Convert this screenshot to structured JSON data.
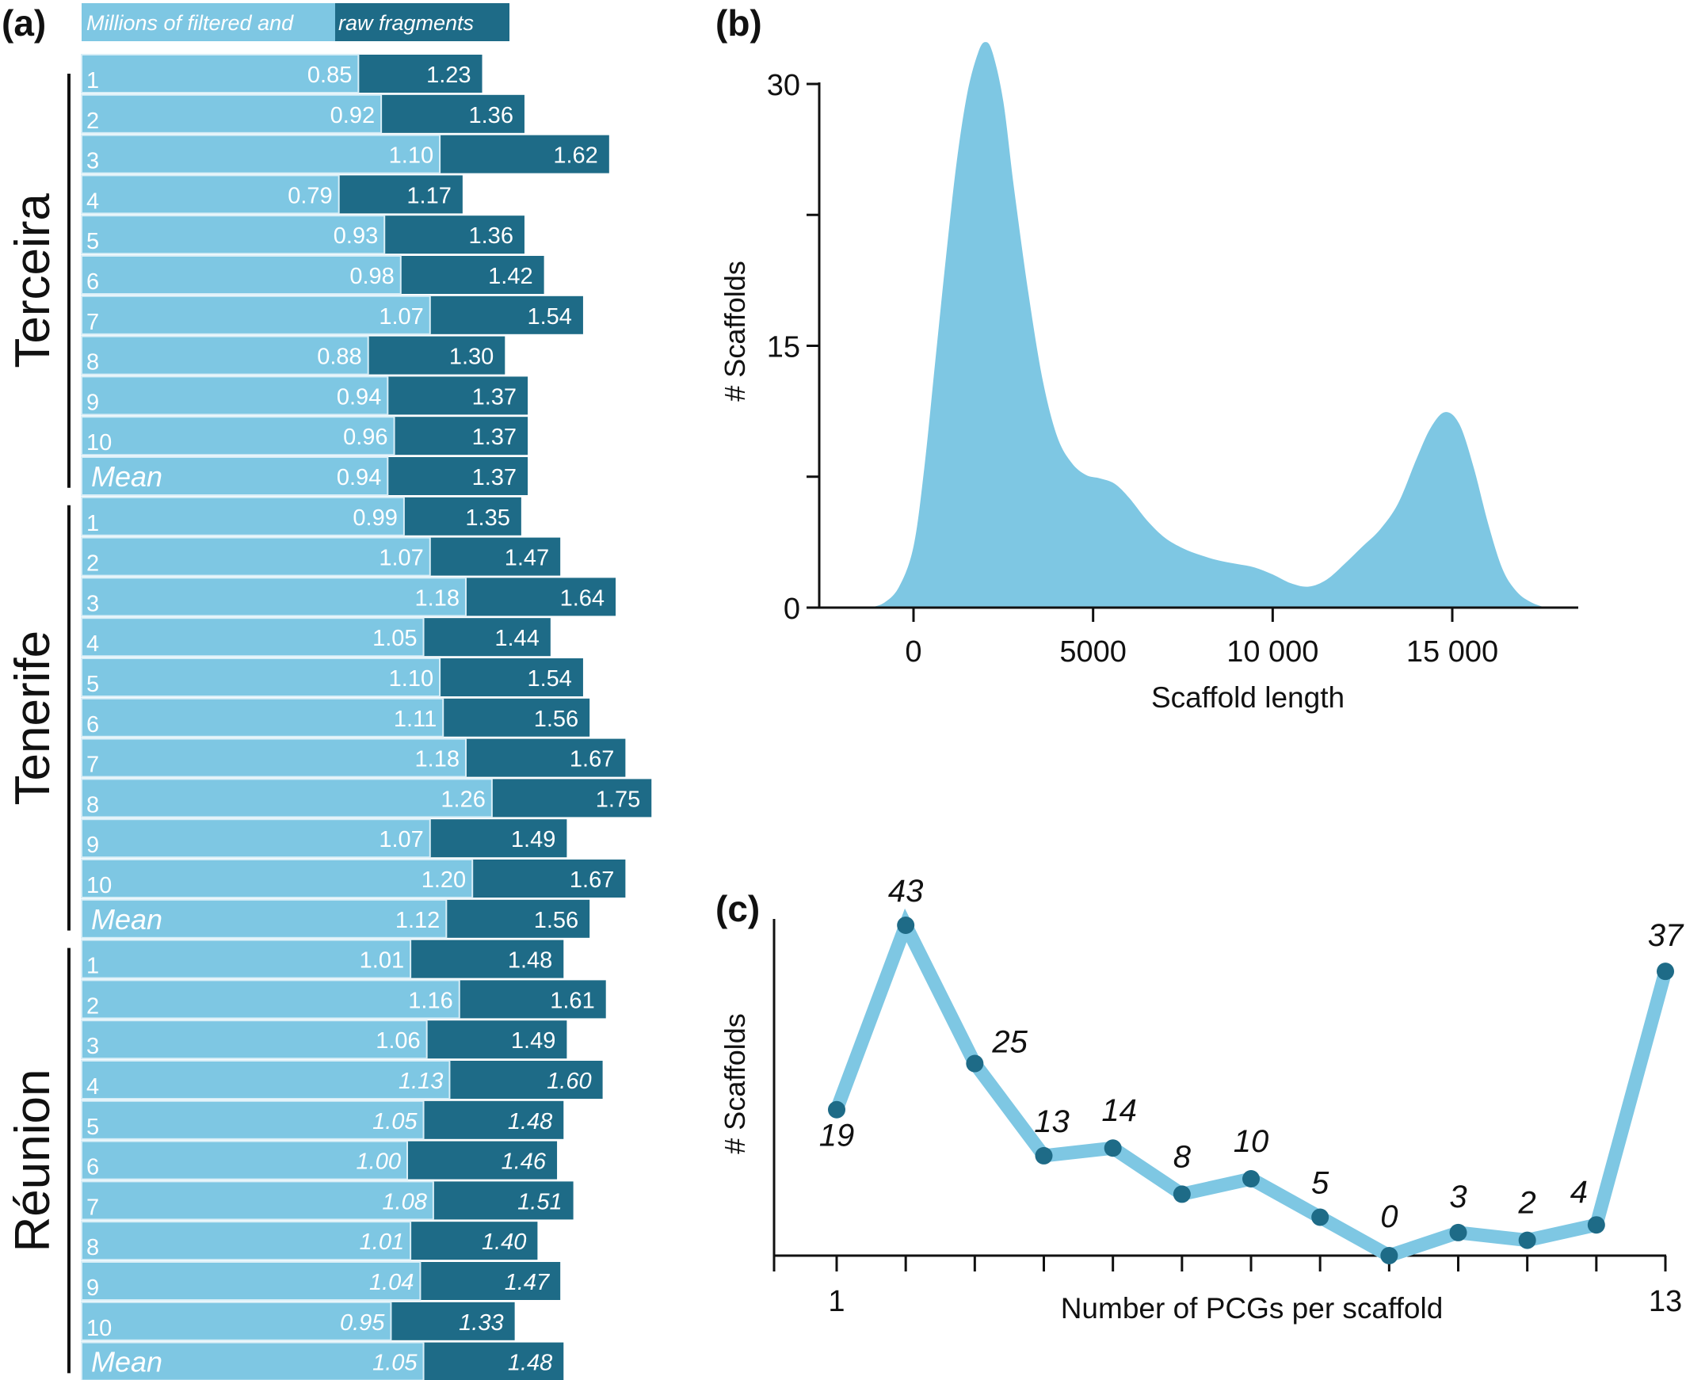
{
  "colors": {
    "filtered": "#7ec7e3",
    "raw": "#1e6b87",
    "density_fill": "#7ec7e3",
    "line": "#7ec7e3",
    "marker": "#1e6b87",
    "axis": "#111111",
    "bar_text": "#ffffff"
  },
  "panels": {
    "a": "(a)",
    "b": "(b)",
    "c": "(c)"
  },
  "chart_data": [
    {
      "id": "a",
      "type": "bar",
      "orientation": "horizontal",
      "stacked_overlay": true,
      "title": "",
      "legend": {
        "placement": "top",
        "entries": [
          "Millions of filtered and",
          "raw fragments"
        ]
      },
      "series_names": [
        "filtered",
        "raw"
      ],
      "units": "millions of fragments",
      "groups": [
        {
          "name": "Terceira",
          "rows": [
            {
              "label": "1",
              "filtered": 0.85,
              "raw": 1.23,
              "italic": false
            },
            {
              "label": "2",
              "filtered": 0.92,
              "raw": 1.36,
              "italic": false
            },
            {
              "label": "3",
              "filtered": 1.1,
              "raw": 1.62,
              "italic": false
            },
            {
              "label": "4",
              "filtered": 0.79,
              "raw": 1.17,
              "italic": false
            },
            {
              "label": "5",
              "filtered": 0.93,
              "raw": 1.36,
              "italic": false
            },
            {
              "label": "6",
              "filtered": 0.98,
              "raw": 1.42,
              "italic": false
            },
            {
              "label": "7",
              "filtered": 1.07,
              "raw": 1.54,
              "italic": false
            },
            {
              "label": "8",
              "filtered": 0.88,
              "raw": 1.3,
              "italic": false
            },
            {
              "label": "9",
              "filtered": 0.94,
              "raw": 1.37,
              "italic": false
            },
            {
              "label": "10",
              "filtered": 0.96,
              "raw": 1.37,
              "italic": false
            },
            {
              "label": "Mean",
              "filtered": 0.94,
              "raw": 1.37,
              "italic": false,
              "mean": true
            }
          ]
        },
        {
          "name": "Tenerife",
          "rows": [
            {
              "label": "1",
              "filtered": 0.99,
              "raw": 1.35,
              "italic": false
            },
            {
              "label": "2",
              "filtered": 1.07,
              "raw": 1.47,
              "italic": false
            },
            {
              "label": "3",
              "filtered": 1.18,
              "raw": 1.64,
              "italic": false
            },
            {
              "label": "4",
              "filtered": 1.05,
              "raw": 1.44,
              "italic": false
            },
            {
              "label": "5",
              "filtered": 1.1,
              "raw": 1.54,
              "italic": false
            },
            {
              "label": "6",
              "filtered": 1.11,
              "raw": 1.56,
              "italic": false
            },
            {
              "label": "7",
              "filtered": 1.18,
              "raw": 1.67,
              "italic": false
            },
            {
              "label": "8",
              "filtered": 1.26,
              "raw": 1.75,
              "italic": false
            },
            {
              "label": "9",
              "filtered": 1.07,
              "raw": 1.49,
              "italic": false
            },
            {
              "label": "10",
              "filtered": 1.2,
              "raw": 1.67,
              "italic": false
            },
            {
              "label": "Mean",
              "filtered": 1.12,
              "raw": 1.56,
              "italic": false,
              "mean": true
            }
          ]
        },
        {
          "name": "Réunion",
          "rows": [
            {
              "label": "1",
              "filtered": 1.01,
              "raw": 1.48,
              "italic": false
            },
            {
              "label": "2",
              "filtered": 1.16,
              "raw": 1.61,
              "italic": false
            },
            {
              "label": "3",
              "filtered": 1.06,
              "raw": 1.49,
              "italic": false
            },
            {
              "label": "4",
              "filtered": 1.13,
              "raw": 1.6,
              "italic": true
            },
            {
              "label": "5",
              "filtered": 1.05,
              "raw": 1.48,
              "italic": true
            },
            {
              "label": "6",
              "filtered": 1.0,
              "raw": 1.46,
              "italic": true
            },
            {
              "label": "7",
              "filtered": 1.08,
              "raw": 1.51,
              "italic": true
            },
            {
              "label": "8",
              "filtered": 1.01,
              "raw": 1.4,
              "italic": true
            },
            {
              "label": "9",
              "filtered": 1.04,
              "raw": 1.47,
              "italic": true
            },
            {
              "label": "10",
              "filtered": 0.95,
              "raw": 1.33,
              "italic": true
            },
            {
              "label": "Mean",
              "filtered": 1.05,
              "raw": 1.48,
              "italic": true,
              "mean": true
            }
          ]
        }
      ]
    },
    {
      "id": "b",
      "type": "area",
      "title": "",
      "xlabel": "Scaffold length",
      "ylabel": "# Scaffolds",
      "xlim": [
        -2300,
        18500
      ],
      "ylim": [
        0,
        30
      ],
      "xticks": [
        0,
        5000,
        10000,
        15000
      ],
      "xtick_labels": [
        "0",
        "5000",
        "10 000",
        "15 000"
      ],
      "yticks": [
        0,
        7.5,
        15,
        22.5,
        30
      ],
      "ytick_labels": [
        "0",
        "",
        "15",
        "",
        "30"
      ],
      "grid": false,
      "x": [
        -1200,
        -800,
        -400,
        0,
        300,
        600,
        900,
        1200,
        1500,
        1800,
        2000,
        2200,
        2500,
        2800,
        3200,
        3600,
        4000,
        4400,
        4800,
        5200,
        5600,
        6000,
        6500,
        7000,
        7500,
        8000,
        8500,
        9000,
        9500,
        10000,
        10500,
        11000,
        11500,
        12000,
        12500,
        13000,
        13500,
        14000,
        14400,
        14800,
        15200,
        15600,
        16000,
        16400,
        16800,
        17200,
        17600
      ],
      "y": [
        0,
        0.3,
        1.2,
        3.5,
        8,
        14,
        20,
        25.5,
        29.5,
        31.8,
        32.4,
        31.8,
        29,
        24,
        18,
        13,
        9.8,
        8.3,
        7.6,
        7.4,
        7.1,
        6.3,
        5.0,
        4.0,
        3.4,
        3.0,
        2.7,
        2.5,
        2.3,
        1.9,
        1.4,
        1.2,
        1.6,
        2.5,
        3.5,
        4.5,
        6.0,
        8.5,
        10.3,
        11.2,
        10.5,
        8.0,
        4.8,
        2.2,
        0.9,
        0.3,
        0
      ]
    },
    {
      "id": "c",
      "type": "line",
      "title": "",
      "xlabel": "Number of PCGs per scaffold",
      "ylabel": "# Scaffolds",
      "x": [
        1,
        2,
        3,
        4,
        5,
        6,
        7,
        8,
        9,
        10,
        11,
        12,
        13
      ],
      "values": [
        19,
        43,
        25,
        13,
        14,
        8,
        10,
        5,
        0,
        3,
        2,
        4,
        37
      ],
      "data_labels": [
        "19",
        "43",
        "25",
        "13",
        "14",
        "8",
        "10",
        "5",
        "0",
        "3",
        "2",
        "4",
        "37"
      ],
      "xtick_labels_shown": {
        "1": "1",
        "13": "13"
      },
      "xlim": [
        0.1,
        13
      ],
      "ylim": [
        0,
        43
      ],
      "grid": false
    }
  ]
}
